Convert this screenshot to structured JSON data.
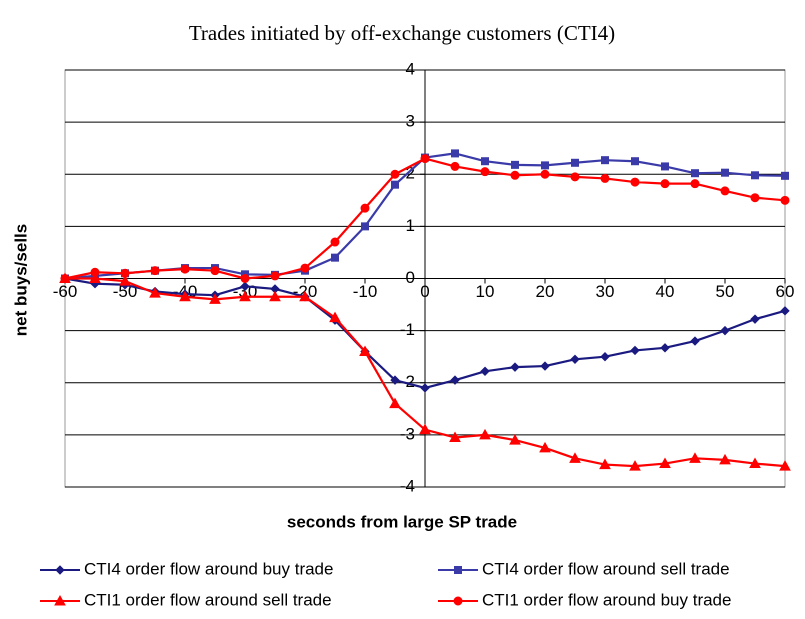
{
  "chart_data": {
    "type": "line",
    "title": "Trades initiated by off-exchange customers (CTI4)",
    "xlabel": "seconds from large SP trade",
    "ylabel": "net buys/sells",
    "x": [
      -60,
      -55,
      -50,
      -45,
      -40,
      -35,
      -30,
      -25,
      -20,
      -15,
      -10,
      -5,
      0,
      5,
      10,
      15,
      20,
      25,
      30,
      35,
      40,
      45,
      50,
      55,
      60
    ],
    "series": [
      {
        "name": "CTI4 order flow around buy trade",
        "color": "#1a1a80",
        "marker": "diamond",
        "values": [
          0,
          -0.1,
          -0.12,
          -0.25,
          -0.3,
          -0.32,
          -0.15,
          -0.2,
          -0.35,
          -0.8,
          -1.4,
          -1.95,
          -2.1,
          -1.95,
          -1.78,
          -1.7,
          -1.68,
          -1.55,
          -1.5,
          -1.38,
          -1.33,
          -1.2,
          -1.0,
          -0.78,
          -0.62
        ]
      },
      {
        "name": "CTI4 order flow around sell trade",
        "color": "#3a3aa8",
        "marker": "square",
        "values": [
          0,
          0.05,
          0.1,
          0.15,
          0.2,
          0.2,
          0.08,
          0.07,
          0.15,
          0.4,
          1.0,
          1.8,
          2.32,
          2.4,
          2.25,
          2.18,
          2.17,
          2.22,
          2.27,
          2.25,
          2.15,
          2.02,
          2.03,
          1.98,
          1.97
        ]
      },
      {
        "name": "CTI1 order flow around sell trade",
        "color": "#ff0000",
        "marker": "triangle",
        "values": [
          0,
          0,
          -0.05,
          -0.28,
          -0.35,
          -0.4,
          -0.35,
          -0.35,
          -0.35,
          -0.75,
          -1.4,
          -2.4,
          -2.9,
          -3.05,
          -3.0,
          -3.1,
          -3.25,
          -3.45,
          -3.57,
          -3.6,
          -3.55,
          -3.45,
          -3.48,
          -3.55,
          -3.6
        ]
      },
      {
        "name": "CTI1 order flow around buy trade",
        "color": "#ff0000",
        "marker": "circle",
        "values": [
          0,
          0.12,
          0.1,
          0.15,
          0.18,
          0.15,
          0,
          0.05,
          0.2,
          0.7,
          1.35,
          2.0,
          2.3,
          2.15,
          2.05,
          1.98,
          2.0,
          1.95,
          1.92,
          1.85,
          1.82,
          1.82,
          1.68,
          1.55,
          1.5
        ]
      }
    ],
    "xlim": [
      -60,
      60
    ],
    "xticks": [
      -60,
      -50,
      -40,
      -30,
      -20,
      -10,
      0,
      10,
      20,
      30,
      40,
      50,
      60
    ],
    "ylim": [
      -4,
      4
    ],
    "yticks": [
      -4,
      -3,
      -2,
      -1,
      0,
      1,
      2,
      3,
      4
    ],
    "grid": true
  }
}
